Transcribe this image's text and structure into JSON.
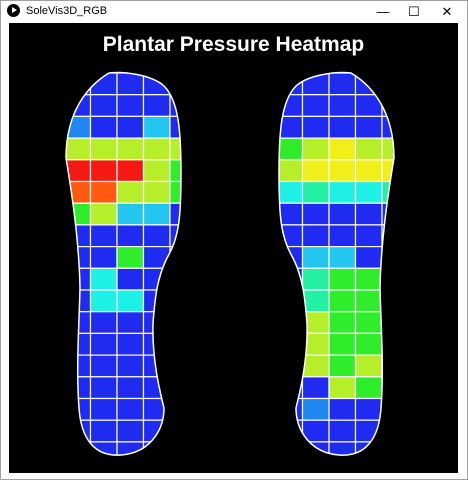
{
  "window": {
    "title": "SoleVis3D_RGB",
    "icon": "play-circle-icon",
    "controls": {
      "minimize_glyph": "—",
      "maximize_glyph": "☐",
      "close_glyph": "✕"
    }
  },
  "canvas": {
    "heading": "Plantar Pressure Heatmap",
    "background": "#000000",
    "palette": {
      "B": "#1f2bf0",
      "L": "#1f86f2",
      "S": "#22c6ee",
      "C": "#1ff0e6",
      "T": "#24f0a4",
      "G": "#30ed2c",
      "Y": "#b6ee2a",
      "W": "#f0ef1a",
      "O": "#ff5a10",
      "R": "#f21a12"
    },
    "left_foot_pressure": [
      "BBBBBB",
      "BBBBBB",
      "LBBSBB",
      "YYYYYB",
      "RRRYGB",
      "OOYYGB",
      "GYSSBB",
      "BBBBBB",
      "BBGBBB",
      "BCBBBB",
      "BCCBBB",
      "BBBBBB",
      "BBBBBB",
      "BBBBBB",
      "BBBBBB",
      "BBBBBB",
      "BBBBBB",
      "BBBBBB"
    ],
    "right_foot_pressure": [
      "BBBBBB",
      "BBBBBB",
      "BBBBBB",
      "GYWYYG",
      "YWWWWW",
      "CTCCTB",
      "BBBBBB",
      "BBBBBB",
      "BSSBBB",
      "BTGGBB",
      "BTGGGB",
      "BYGGGB",
      "YYGGYB",
      "BYGYYB",
      "BBYGYB",
      "BLBBBB",
      "BBBBBB",
      "BBBBBB"
    ]
  }
}
